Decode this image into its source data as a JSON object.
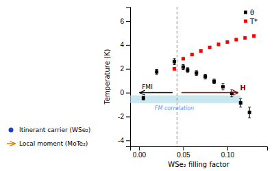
{
  "chart_data": {
    "type": "scatter",
    "xlabel": "WSe₂ filling factor",
    "ylabel": "Temperature (K)",
    "xlim": [
      -0.01,
      0.145
    ],
    "ylim": [
      -4.5,
      7.2
    ],
    "xticks": [
      {
        "value": 0.0,
        "label": "0.00"
      },
      {
        "value": 0.05,
        "label": "0.05"
      },
      {
        "value": 0.1,
        "label": "0.10"
      }
    ],
    "yticks": [
      -4,
      -2,
      0,
      2,
      4,
      6
    ],
    "legend": "upper right",
    "series": [
      {
        "name": "θ",
        "color": "black",
        "marker": "square",
        "x": [
          0.005,
          0.02,
          0.04,
          0.05,
          0.055,
          0.065,
          0.075,
          0.085,
          0.095,
          0.105,
          0.115,
          0.125
        ],
        "values": [
          -0.45,
          1.75,
          2.6,
          2.15,
          1.9,
          1.65,
          1.35,
          0.95,
          0.5,
          -0.05,
          -0.85,
          -1.65
        ],
        "errors": [
          0.15,
          0.2,
          0.25,
          0.2,
          0.2,
          0.2,
          0.2,
          0.2,
          0.25,
          0.3,
          0.35,
          0.45
        ]
      },
      {
        "name": "T*",
        "color": "red",
        "marker": "square",
        "x": [
          0.04,
          0.05,
          0.06,
          0.07,
          0.08,
          0.09,
          0.1,
          0.11,
          0.12,
          0.13
        ],
        "values": [
          2.0,
          2.85,
          3.2,
          3.5,
          3.8,
          4.05,
          4.25,
          4.45,
          4.6,
          4.75
        ],
        "errors": [
          0.12,
          0.1,
          0.1,
          0.1,
          0.1,
          0.1,
          0.1,
          0.1,
          0.1,
          0.1
        ]
      }
    ],
    "vline": {
      "x": 0.043,
      "color": "gray",
      "line_style": "dashed"
    },
    "shaded_band": {
      "x": [
        -0.01,
        0.115
      ],
      "y": [
        -0.875,
        -0.225
      ],
      "color": "lightblue",
      "label": "FM correlation",
      "label_color": "cornflowerblue"
    },
    "arrows": [
      {
        "from": [
          0.038,
          0.0
        ],
        "to": [
          0.001,
          0.0
        ],
        "color": "black",
        "label": "FMI"
      },
      {
        "from": [
          0.048,
          0.0
        ],
        "to": [
          0.112,
          0.0
        ],
        "color": "darkred",
        "label": "H"
      }
    ],
    "diagram_legend": [
      {
        "label": "Itinerant carrier (WSe₂)",
        "marker": "circle",
        "color": "#1a3fcc"
      },
      {
        "label": "Local moment (MoTe₂)",
        "marker": "arrow",
        "color": "#cc7700"
      }
    ]
  }
}
